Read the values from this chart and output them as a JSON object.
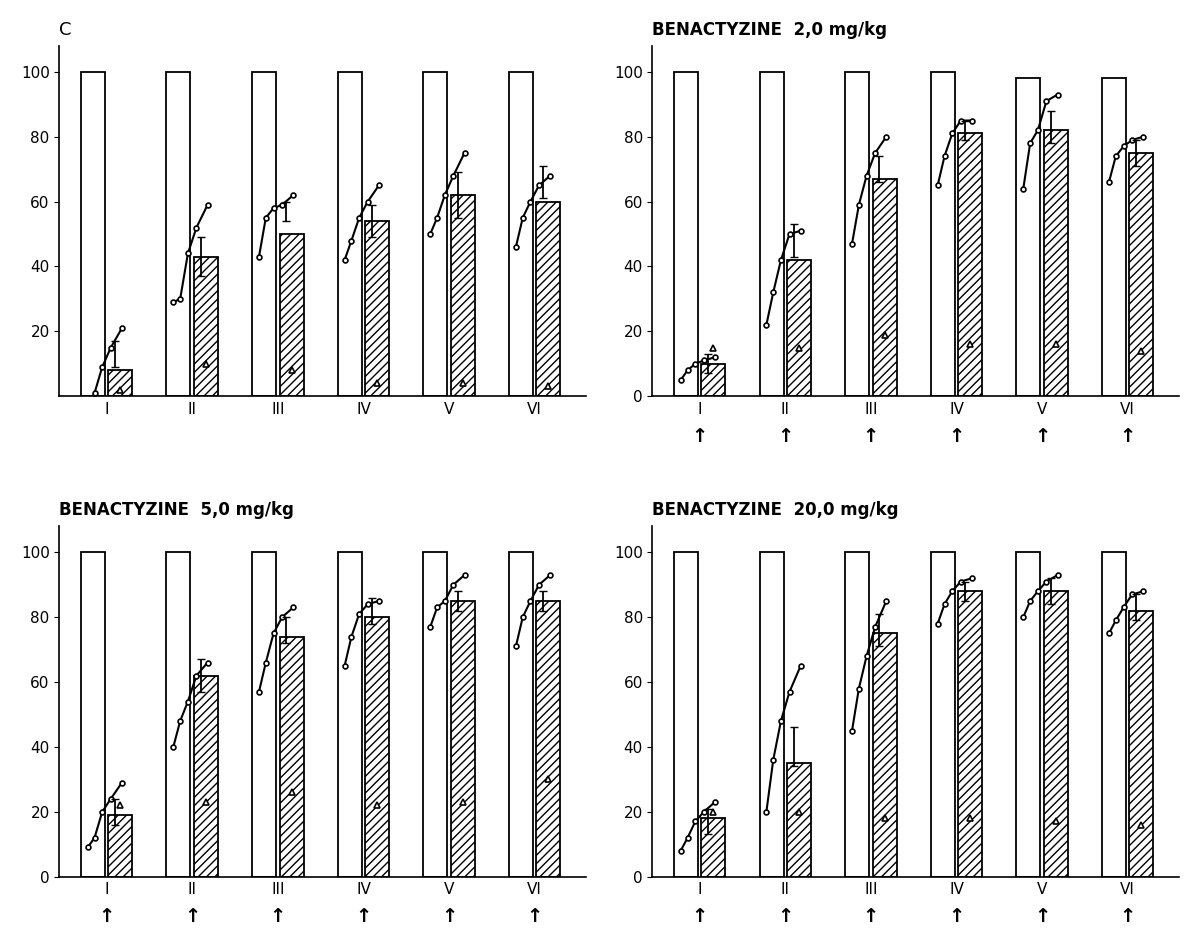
{
  "panels": [
    {
      "title": "C",
      "title_style": "normal",
      "has_arrows": false,
      "show_zero": false,
      "groups": [
        "I",
        "II",
        "III",
        "IV",
        "V",
        "VI"
      ],
      "white_bar": [
        100,
        100,
        100,
        100,
        100,
        100
      ],
      "hatched_bar": [
        8,
        43,
        50,
        54,
        62,
        60
      ],
      "triangle_y": [
        2,
        10,
        8,
        4,
        4,
        3
      ],
      "line_points": [
        [
          -3,
          1,
          9,
          15,
          21
        ],
        [
          29,
          30,
          44,
          52,
          59
        ],
        [
          43,
          55,
          58,
          59,
          62
        ],
        [
          42,
          48,
          55,
          60,
          65
        ],
        [
          50,
          55,
          62,
          68,
          75
        ],
        [
          46,
          55,
          60,
          65,
          68
        ]
      ],
      "line_x_offsets": [
        -0.22,
        -0.14,
        -0.05,
        0.05,
        0.18
      ],
      "error_bar_y": [
        13,
        43,
        57,
        54,
        62,
        66
      ],
      "error_bar_err": [
        4,
        6,
        3,
        5,
        7,
        5
      ]
    },
    {
      "title": "BENACTYZINE  2,0 mg/kg",
      "title_style": "bold",
      "has_arrows": true,
      "show_zero": true,
      "groups": [
        "I",
        "II",
        "III",
        "IV",
        "V",
        "VI"
      ],
      "white_bar": [
        100,
        100,
        100,
        100,
        98,
        98
      ],
      "hatched_bar": [
        10,
        42,
        67,
        81,
        82,
        75
      ],
      "triangle_y": [
        15,
        15,
        19,
        16,
        16,
        14
      ],
      "line_points": [
        [
          5,
          8,
          10,
          11,
          12
        ],
        [
          22,
          32,
          42,
          50,
          51
        ],
        [
          47,
          59,
          68,
          75,
          80
        ],
        [
          65,
          74,
          81,
          85,
          85
        ],
        [
          64,
          78,
          82,
          91,
          93
        ],
        [
          66,
          74,
          77,
          79,
          80
        ]
      ],
      "line_x_offsets": [
        -0.22,
        -0.14,
        -0.05,
        0.05,
        0.18
      ],
      "error_bar_y": [
        10,
        48,
        70,
        82,
        83,
        75
      ],
      "error_bar_err": [
        3,
        5,
        4,
        3,
        5,
        4
      ]
    },
    {
      "title": "BENACTYZINE  5,0 mg/kg",
      "title_style": "bold",
      "has_arrows": true,
      "show_zero": true,
      "groups": [
        "I",
        "II",
        "III",
        "IV",
        "V",
        "VI"
      ],
      "white_bar": [
        100,
        100,
        100,
        100,
        100,
        100
      ],
      "hatched_bar": [
        19,
        62,
        74,
        80,
        85,
        85
      ],
      "triangle_y": [
        22,
        23,
        26,
        22,
        23,
        30
      ],
      "line_points": [
        [
          9,
          12,
          20,
          24,
          29
        ],
        [
          40,
          48,
          54,
          62,
          66
        ],
        [
          57,
          66,
          75,
          80,
          83
        ],
        [
          65,
          74,
          81,
          84,
          85
        ],
        [
          77,
          83,
          85,
          90,
          93
        ],
        [
          71,
          80,
          85,
          90,
          93
        ]
      ],
      "line_x_offsets": [
        -0.22,
        -0.14,
        -0.05,
        0.05,
        0.18
      ],
      "error_bar_y": [
        20,
        62,
        76,
        82,
        85,
        85
      ],
      "error_bar_err": [
        4,
        5,
        4,
        4,
        3,
        3
      ]
    },
    {
      "title": "BENACTYZINE  20,0 mg/kg",
      "title_style": "bold",
      "has_arrows": true,
      "show_zero": true,
      "groups": [
        "I",
        "II",
        "III",
        "IV",
        "V",
        "VI"
      ],
      "white_bar": [
        100,
        100,
        100,
        100,
        100,
        100
      ],
      "hatched_bar": [
        18,
        35,
        75,
        88,
        88,
        82
      ],
      "triangle_y": [
        20,
        20,
        18,
        18,
        17,
        16
      ],
      "line_points": [
        [
          8,
          12,
          17,
          20,
          23
        ],
        [
          20,
          36,
          48,
          57,
          65
        ],
        [
          45,
          58,
          68,
          77,
          85
        ],
        [
          78,
          84,
          88,
          91,
          92
        ],
        [
          80,
          85,
          88,
          91,
          93
        ],
        [
          75,
          79,
          83,
          87,
          88
        ]
      ],
      "line_x_offsets": [
        -0.22,
        -0.14,
        -0.05,
        0.05,
        0.18
      ],
      "error_bar_y": [
        17,
        40,
        76,
        88,
        88,
        83
      ],
      "error_bar_err": [
        4,
        6,
        5,
        3,
        4,
        4
      ]
    }
  ],
  "bar_width": 0.28,
  "bg_color": "#ffffff",
  "bar_edge_color": "black",
  "hatch_pattern": "////",
  "ylim_with_zero": [
    0,
    108
  ],
  "ylim_no_zero": [
    0,
    108
  ],
  "yticks_with_zero": [
    0,
    20,
    40,
    60,
    80,
    100
  ],
  "yticks_no_zero": [
    20,
    40,
    60,
    80,
    100
  ]
}
